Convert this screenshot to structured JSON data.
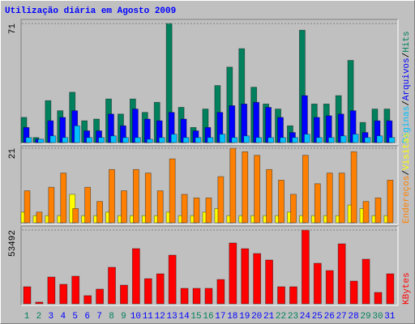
{
  "chart_data": [
    {
      "type": "bar",
      "title": "Utilização diária em Agosto 2009",
      "categories": [
        "1",
        "2",
        "3",
        "4",
        "5",
        "6",
        "7",
        "8",
        "9",
        "10",
        "11",
        "12",
        "13",
        "14",
        "15",
        "16",
        "17",
        "18",
        "19",
        "20",
        "21",
        "22",
        "23",
        "24",
        "25",
        "26",
        "27",
        "28",
        "29",
        "30",
        "31"
      ],
      "category_colors": [
        "#00805c",
        "#00805c",
        "#0000ff",
        "#0000ff",
        "#0000ff",
        "#0000ff",
        "#0000ff",
        "#00805c",
        "#00805c",
        "#0000ff",
        "#0000ff",
        "#0000ff",
        "#0000ff",
        "#0000ff",
        "#00805c",
        "#00805c",
        "#0000ff",
        "#0000ff",
        "#0000ff",
        "#0000ff",
        "#0000ff",
        "#00805c",
        "#00805c",
        "#0000ff",
        "#0000ff",
        "#0000ff",
        "#0000ff",
        "#0000ff",
        "#00805c",
        "#00805c",
        "#0000ff"
      ],
      "legend_separator": "/",
      "ylim": [
        0,
        71
      ],
      "yticks": [
        71
      ],
      "series": [
        {
          "name": "Hits",
          "color": "#00805c",
          "values": [
            15,
            3,
            25,
            19,
            30,
            13,
            14,
            26,
            17,
            26,
            18,
            24,
            71,
            21,
            9,
            20,
            34,
            45,
            56,
            33,
            23,
            20,
            10,
            67,
            23,
            23,
            28,
            49,
            12,
            20,
            20
          ]
        },
        {
          "name": "Arquivos",
          "color": "#0000ff",
          "values": [
            9,
            2,
            13,
            15,
            19,
            7,
            7,
            17,
            10,
            20,
            14,
            13,
            18,
            14,
            7,
            9,
            18,
            22,
            23,
            24,
            21,
            15,
            6,
            28,
            15,
            16,
            17,
            19,
            6,
            13,
            13
          ]
        },
        {
          "name": "Páginas",
          "color": "#00c0ff",
          "values": [
            3,
            2,
            4,
            3,
            10,
            3,
            3,
            4,
            3,
            3,
            2,
            3,
            5,
            3,
            3,
            3,
            5,
            3,
            4,
            3,
            3,
            3,
            3,
            5,
            3,
            3,
            4,
            5,
            3,
            4,
            3
          ]
        }
      ]
    },
    {
      "type": "bar",
      "ylim": [
        0,
        21
      ],
      "yticks": [
        21
      ],
      "series": [
        {
          "name": "Visitas",
          "color": "#ffff00",
          "values": [
            3,
            2,
            2,
            2,
            8,
            2,
            2,
            3,
            2,
            2,
            2,
            2,
            3,
            2,
            2,
            3,
            4,
            2,
            2,
            2,
            2,
            2,
            3,
            2,
            2,
            2,
            2,
            5,
            4,
            2,
            2
          ]
        },
        {
          "name": "Endereços",
          "color": "#ff8000",
          "values": [
            9,
            3,
            10,
            14,
            4,
            10,
            6,
            15,
            9,
            15,
            14,
            9,
            18,
            8,
            7,
            7,
            13,
            21,
            20,
            19,
            15,
            12,
            8,
            19,
            11,
            14,
            14,
            20,
            6,
            7,
            12
          ]
        }
      ]
    },
    {
      "type": "bar",
      "ylim": [
        0,
        53492
      ],
      "yticks": [
        53492
      ],
      "series": [
        {
          "name": "KBytes",
          "color": "#ff0000",
          "values": [
            12344,
            1200,
            19400,
            14100,
            20000,
            5900,
            10600,
            26450,
            13500,
            40000,
            18200,
            21750,
            35270,
            11170,
            11170,
            11170,
            17600,
            44090,
            39970,
            36450,
            31740,
            12340,
            12340,
            53492,
            29390,
            24100,
            43500,
            16460,
            32330,
            8230,
            21750
          ]
        }
      ]
    }
  ]
}
